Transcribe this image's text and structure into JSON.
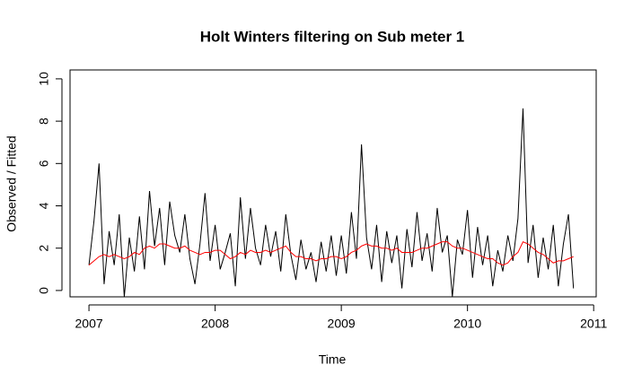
{
  "chart_data": {
    "type": "line",
    "title": "Holt Winters filtering on Sub meter 1",
    "x_label": "Time",
    "y_label": "Observed / Fitted",
    "x": [
      2007.0,
      2007.04,
      2007.08,
      2007.12,
      2007.16,
      2007.2,
      2007.24,
      2007.28,
      2007.32,
      2007.36,
      2007.4,
      2007.44,
      2007.48,
      2007.52,
      2007.56,
      2007.6,
      2007.64,
      2007.68,
      2007.72,
      2007.76,
      2007.8,
      2007.84,
      2007.88,
      2007.92,
      2007.96,
      2008.0,
      2008.04,
      2008.08,
      2008.12,
      2008.16,
      2008.2,
      2008.24,
      2008.28,
      2008.32,
      2008.36,
      2008.4,
      2008.44,
      2008.48,
      2008.52,
      2008.56,
      2008.6,
      2008.64,
      2008.68,
      2008.72,
      2008.76,
      2008.8,
      2008.84,
      2008.88,
      2008.92,
      2008.96,
      2009.0,
      2009.04,
      2009.08,
      2009.12,
      2009.16,
      2009.2,
      2009.24,
      2009.28,
      2009.32,
      2009.36,
      2009.4,
      2009.44,
      2009.48,
      2009.52,
      2009.56,
      2009.6,
      2009.64,
      2009.68,
      2009.72,
      2009.76,
      2009.8,
      2009.84,
      2009.88,
      2009.92,
      2009.96,
      2010.0,
      2010.04,
      2010.08,
      2010.12,
      2010.16,
      2010.2,
      2010.24,
      2010.28,
      2010.32,
      2010.36,
      2010.4,
      2010.44,
      2010.48,
      2010.52,
      2010.56,
      2010.6,
      2010.64,
      2010.68,
      2010.72,
      2010.76,
      2010.8,
      2010.84
    ],
    "series": [
      {
        "name": "Observed",
        "color": "#000000",
        "values": [
          1.2,
          3.3,
          6.0,
          0.3,
          2.8,
          1.2,
          3.6,
          -0.3,
          2.5,
          0.9,
          3.5,
          1.0,
          4.7,
          2.1,
          3.9,
          1.2,
          4.2,
          2.6,
          1.8,
          3.6,
          1.5,
          0.3,
          2.2,
          4.6,
          1.4,
          3.1,
          1.0,
          1.8,
          2.7,
          0.2,
          4.4,
          1.5,
          3.9,
          2.0,
          1.2,
          3.1,
          1.6,
          2.8,
          0.9,
          3.6,
          1.7,
          0.5,
          2.4,
          1.0,
          1.8,
          0.4,
          2.3,
          0.9,
          2.6,
          0.7,
          2.6,
          0.8,
          3.7,
          1.5,
          6.9,
          2.5,
          1.0,
          3.1,
          0.4,
          2.8,
          1.3,
          2.6,
          0.1,
          2.9,
          1.1,
          3.7,
          1.4,
          2.7,
          0.9,
          3.9,
          1.8,
          2.6,
          -0.3,
          2.4,
          1.7,
          3.8,
          0.6,
          3.0,
          1.2,
          2.6,
          0.2,
          1.9,
          0.9,
          2.6,
          1.4,
          3.4,
          8.6,
          1.3,
          3.1,
          0.6,
          2.5,
          1.0,
          3.1,
          0.2,
          2.2,
          3.6,
          0.1
        ]
      },
      {
        "name": "Fitted",
        "color": "#ff0000",
        "values": [
          1.2,
          1.4,
          1.6,
          1.7,
          1.6,
          1.7,
          1.6,
          1.5,
          1.6,
          1.8,
          1.7,
          2.0,
          2.1,
          2.0,
          2.2,
          2.2,
          2.1,
          2.0,
          2.0,
          2.1,
          1.9,
          1.8,
          1.7,
          1.8,
          1.8,
          1.9,
          1.9,
          1.7,
          1.5,
          1.6,
          1.8,
          1.7,
          1.9,
          1.8,
          1.8,
          1.9,
          1.8,
          1.9,
          2.0,
          2.1,
          1.8,
          1.6,
          1.6,
          1.5,
          1.5,
          1.4,
          1.5,
          1.5,
          1.6,
          1.6,
          1.5,
          1.6,
          1.8,
          1.9,
          2.1,
          2.2,
          2.1,
          2.1,
          2.0,
          2.0,
          1.9,
          2.0,
          1.8,
          1.8,
          1.8,
          1.9,
          2.0,
          2.0,
          2.1,
          2.2,
          2.3,
          2.3,
          2.1,
          2.0,
          2.0,
          1.9,
          1.8,
          1.7,
          1.6,
          1.5,
          1.5,
          1.3,
          1.2,
          1.3,
          1.6,
          1.8,
          2.3,
          2.2,
          2.0,
          1.8,
          1.7,
          1.5,
          1.3,
          1.4,
          1.4,
          1.5,
          1.6
        ]
      }
    ],
    "xlim": [
      2006.85,
      2011.02
    ],
    "xticks": [
      2007,
      2008,
      2009,
      2010,
      2011
    ],
    "ylim": [
      -0.3,
      10.42
    ],
    "yticks": [
      0,
      2,
      4,
      6,
      8,
      10
    ],
    "grid": false,
    "legend": false
  }
}
